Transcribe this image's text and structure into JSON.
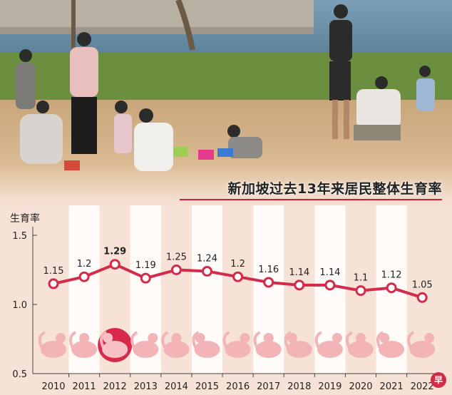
{
  "chart_data": {
    "type": "line",
    "title": "新加坡过去13年来居民整体生育率",
    "ylabel": "生育率",
    "xlabel": "",
    "ylim": [
      0.5,
      1.5
    ],
    "y_ticks": [
      "1.5",
      "1.0",
      "0.5"
    ],
    "x": [
      "2010",
      "2011",
      "2012",
      "2013",
      "2014",
      "2015",
      "2016",
      "2017",
      "2018",
      "2019",
      "2020",
      "2021",
      "2022"
    ],
    "series": [
      {
        "values": [
          1.15,
          1.2,
          1.29,
          1.19,
          1.25,
          1.24,
          1.2,
          1.16,
          1.14,
          1.14,
          1.1,
          1.12,
          1.05
        ],
        "labels": [
          "1.15",
          "1.2",
          "1.29",
          "1.19",
          "1.25",
          "1.24",
          "1.2",
          "1.16",
          "1.14",
          "1.14",
          "1.1",
          "1.12",
          "1.05"
        ]
      }
    ],
    "highlight_index": 2,
    "grid": false,
    "column_bands": true,
    "line_color": "#d32b4b",
    "marker_fill": "#ffffff",
    "zodiac_color": "#f3b4b8"
  },
  "zodiac_icons": [
    "tiger-icon",
    "rabbit-icon",
    "dragon-icon",
    "snake-icon",
    "horse-icon",
    "goat-icon",
    "monkey-icon",
    "rooster-icon",
    "dog-icon",
    "pig-icon",
    "rat-icon",
    "ox-icon",
    "tiger-icon"
  ],
  "badge": "早"
}
